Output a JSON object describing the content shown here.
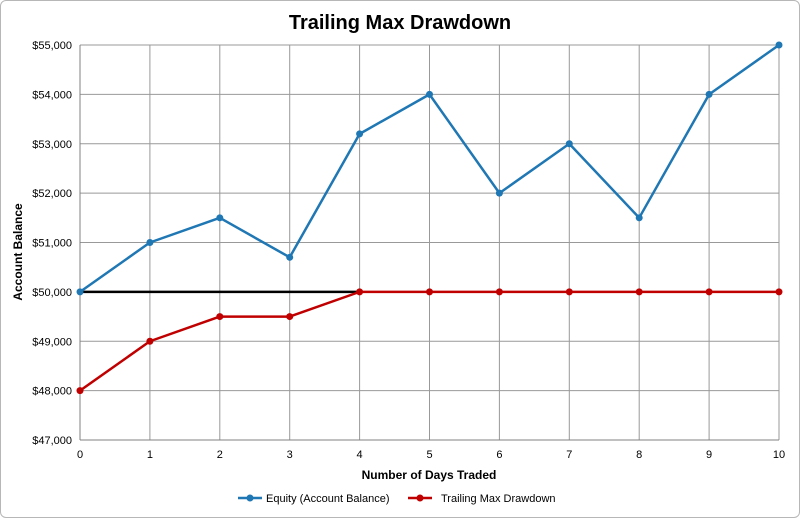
{
  "chart_data": {
    "type": "line",
    "title": "Trailing Max Drawdown",
    "xlabel": "Number of Days  Traded",
    "ylabel": "Account Balance",
    "x": [
      0,
      1,
      2,
      3,
      4,
      5,
      6,
      7,
      8,
      9,
      10
    ],
    "xlim": [
      0,
      10
    ],
    "ylim": [
      47000,
      55000
    ],
    "yticks": [
      47000,
      48000,
      49000,
      50000,
      51000,
      52000,
      53000,
      54000,
      55000
    ],
    "ytick_labels": [
      "$47,000",
      "$48,000",
      "$49,000",
      "$50,000",
      "$51,000",
      "$52,000",
      "$53,000",
      "$54,000",
      "$55,000"
    ],
    "xtick_labels": [
      "0",
      "1",
      "2",
      "3",
      "4",
      "5",
      "6",
      "7",
      "8",
      "9",
      "10"
    ],
    "grid": true,
    "legend_position": "bottom",
    "series": [
      {
        "name": "Equity (Account Balance)",
        "color": "#1f77b4",
        "values": [
          50000,
          51000,
          51500,
          50700,
          53200,
          54000,
          52000,
          53000,
          51500,
          54000,
          55000
        ]
      },
      {
        "name": "Trailing Max Drawdown",
        "color": "#c00000",
        "values": [
          48000,
          49000,
          49500,
          49500,
          50000,
          50000,
          50000,
          50000,
          50000,
          50000,
          50000
        ]
      }
    ],
    "reference_line": {
      "color": "#000000",
      "x": [
        0,
        4
      ],
      "y": 50000
    }
  }
}
